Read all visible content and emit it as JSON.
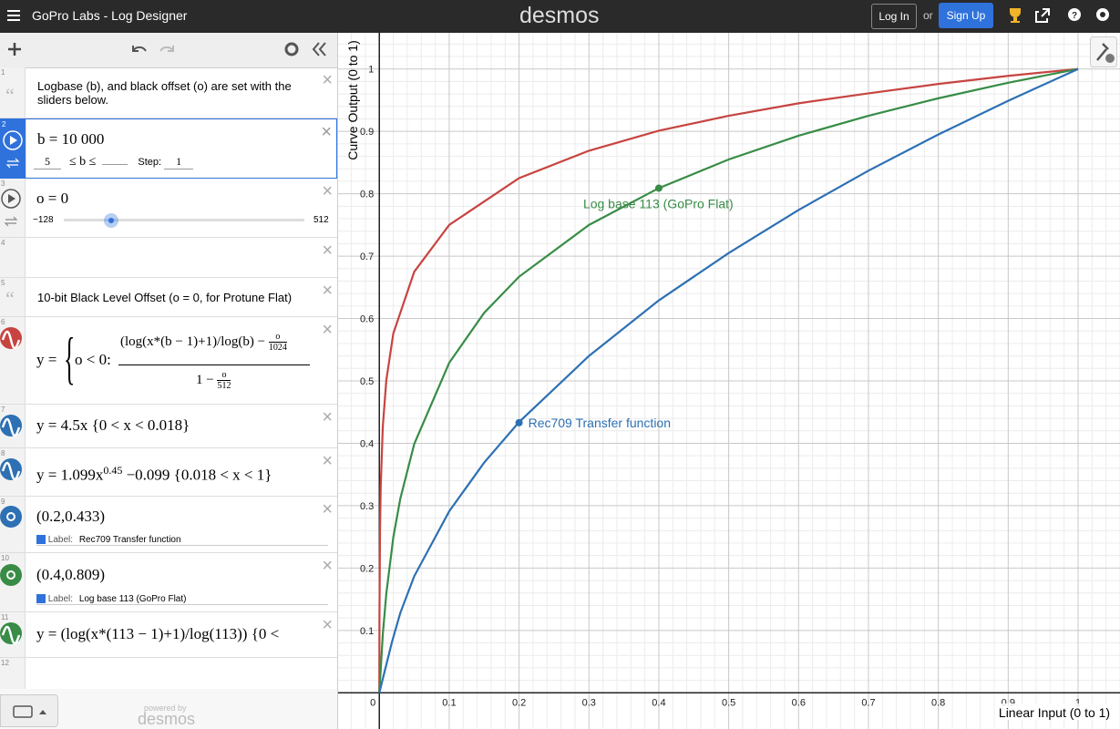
{
  "header": {
    "title": "GoPro Labs - Log Designer",
    "brand": "desmos",
    "login": "Log In",
    "or": "or",
    "signup": "Sign Up"
  },
  "expressions": [
    {
      "number": 1,
      "text": "Logbase (b), and black offset (o) are set with the sliders below."
    },
    {
      "number": 2,
      "math": "b = 10 000",
      "slider_min": "5",
      "slider_op": "≤ b ≤",
      "step_label": "Step:",
      "step": "1"
    },
    {
      "number": 3,
      "math": "o = 0",
      "slider_min": "−128",
      "slider_max": "512"
    },
    {
      "number": 4
    },
    {
      "number": 5,
      "text": "10-bit Black Level Offset (o = 0, for Protune Flat)"
    },
    {
      "number": 6,
      "lhs": "y =",
      "cond": "o < 0:",
      "num": "(log(x*(b − 1)+1)/log(b) −",
      "num_frac_top": "o",
      "num_frac_bottom": "1024",
      "den": "1 −",
      "den_frac_top": "o",
      "den_frac_bottom": "512"
    },
    {
      "number": 7,
      "math": "y = 4.5x {0 < x < 0.018}"
    },
    {
      "number": 8,
      "math_a": "y = 1.099x",
      "sup": "0.45",
      "math_b": " −0.099 {0.018 < x < 1}"
    },
    {
      "number": 9,
      "math": "(0.2,0.433)",
      "label_caption": "Label:",
      "label": "Rec709 Transfer function"
    },
    {
      "number": 10,
      "math": "(0.4,0.809)",
      "label_caption": "Label:",
      "label": "Log base 113 (GoPro Flat)"
    },
    {
      "number": 11,
      "math": "y = (log(x*(113 − 1)+1)/log(113)) {0 <"
    },
    {
      "number": 12
    }
  ],
  "footer": {
    "powered": "powered by",
    "brand": "desmos"
  },
  "chart_data": {
    "type": "line",
    "xlabel": "Linear Input (0 to 1)",
    "ylabel": "Curve Output (0 to 1)",
    "xlim": [
      -0.059,
      1.06
    ],
    "ylim": [
      -0.058,
      1.058
    ],
    "xticks": [
      0,
      0.1,
      0.2,
      0.3,
      0.4,
      0.5,
      0.6,
      0.7,
      0.8,
      0.9,
      1
    ],
    "yticks": [
      0.1,
      0.2,
      0.3,
      0.4,
      0.5,
      0.6,
      0.7,
      0.8,
      0.9,
      1
    ],
    "grid": true,
    "series": [
      {
        "color": "#c74440",
        "x": [
          0,
          0.0002,
          0.001,
          0.002,
          0.005,
          0.01,
          0.02,
          0.05,
          0.1,
          0.2,
          0.3,
          0.4,
          0.5,
          0.6,
          0.7,
          0.8,
          0.9,
          1
        ],
        "values": [
          0,
          0.119,
          0.26,
          0.331,
          0.427,
          0.501,
          0.576,
          0.675,
          0.75,
          0.825,
          0.869,
          0.901,
          0.925,
          0.945,
          0.961,
          0.976,
          0.989,
          1
        ]
      },
      {
        "color": "#388c46",
        "x": [
          0,
          0.005,
          0.01,
          0.02,
          0.03,
          0.05,
          0.1,
          0.15,
          0.2,
          0.3,
          0.4,
          0.5,
          0.6,
          0.7,
          0.8,
          0.9,
          1
        ],
        "values": [
          0,
          0.094,
          0.159,
          0.249,
          0.311,
          0.399,
          0.529,
          0.609,
          0.667,
          0.75,
          0.809,
          0.855,
          0.893,
          0.925,
          0.953,
          0.978,
          1
        ]
      },
      {
        "color": "#2d70b3",
        "x": [
          0,
          0.018,
          0.03,
          0.05,
          0.1,
          0.15,
          0.2,
          0.3,
          0.4,
          0.5,
          0.6,
          0.7,
          0.8,
          0.9,
          1
        ],
        "values": [
          0,
          0.081,
          0.128,
          0.187,
          0.291,
          0.369,
          0.434,
          0.54,
          0.629,
          0.705,
          0.774,
          0.837,
          0.895,
          0.949,
          1
        ]
      }
    ],
    "points": [
      {
        "x": 0.2,
        "y": 0.433,
        "color": "#2d70b3",
        "label": "Rec709 Transfer function"
      },
      {
        "x": 0.4,
        "y": 0.809,
        "color": "#388c46",
        "label": "Log base 113 (GoPro Flat)"
      }
    ]
  }
}
